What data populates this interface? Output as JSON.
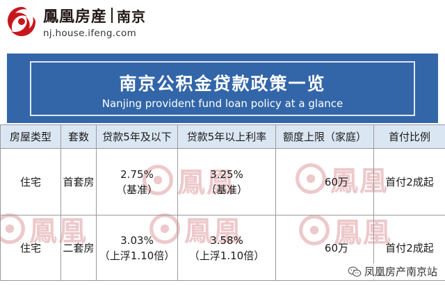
{
  "header": {
    "brand": "鳳凰房産",
    "city": "南京",
    "url": "nj.house.ifeng.com",
    "logo_icon": "phoenix-logo-icon"
  },
  "banner": {
    "title_cn": "南京公积金贷款政策一览",
    "title_en": "Nanjing provident fund loan policy at a glance",
    "color": "#3366a8"
  },
  "table": {
    "headers": [
      "房屋类型",
      "套数",
      "贷款5年及以下",
      "贷款5年以上利率",
      "额度上限（家庭）",
      "首付比例"
    ],
    "rows": [
      {
        "type": "住宅",
        "count": "首套房",
        "rate_short": [
          "2.75%",
          "（基准）"
        ],
        "rate_long": [
          "3.25%",
          "（基准）"
        ],
        "limit": "60万",
        "down_payment": "首付2成起"
      },
      {
        "type": "住宅",
        "count": "二套房",
        "rate_short": [
          "3.03%",
          "（上浮1.10倍）"
        ],
        "rate_long": [
          "3.58%",
          "（上浮1.10倍）"
        ],
        "limit": "60万",
        "down_payment": "首付2成起"
      }
    ],
    "header_bg": "#dbe6f3"
  },
  "watermark": {
    "text": "鳳凰"
  },
  "credit": {
    "text": "凤凰房产南京站",
    "icon": "wechat-icon"
  }
}
